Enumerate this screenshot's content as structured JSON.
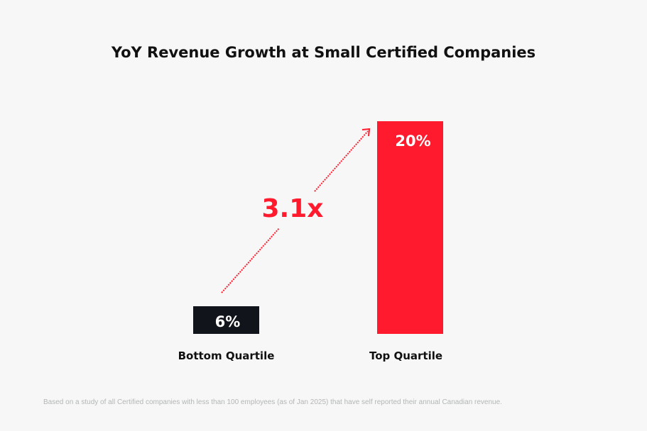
{
  "chart_data": {
    "type": "bar",
    "title": "YoY Revenue Growth at Small Certified Companies",
    "categories": [
      "Bottom Quartile",
      "Top Quartile"
    ],
    "values": [
      6,
      20
    ],
    "data_labels": [
      "6%",
      "20%"
    ],
    "colors": [
      "#12141c",
      "#ff1a2d"
    ],
    "annotation": "3.1x",
    "annotation_color": "#ff1a2d",
    "grid": false,
    "xlabel": "",
    "ylabel": ""
  },
  "footnote": "Based on a study of all Certified companies with less than 100 employees (as of Jan 2025) that have self reported their annual Canadian revenue."
}
